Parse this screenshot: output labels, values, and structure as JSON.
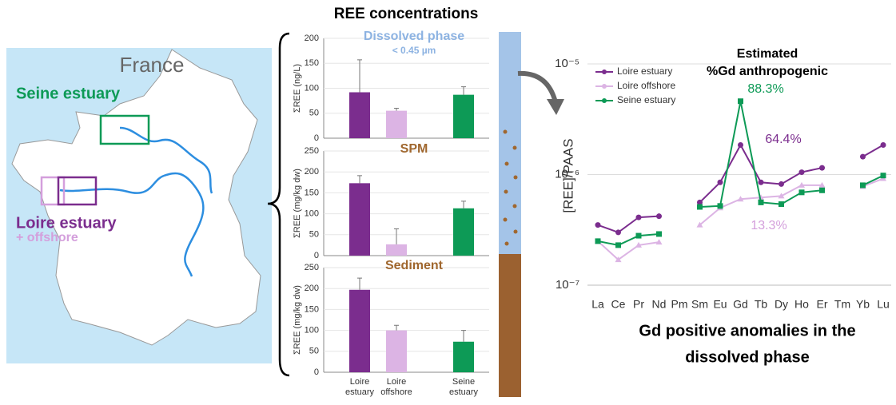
{
  "title": "REE concentrations",
  "map": {
    "title": "France",
    "labels": [
      {
        "text": "Seine estuary",
        "color": "#0d9a56"
      },
      {
        "text": "Loire estuary",
        "color": "#7b2d8e"
      },
      {
        "text": "+ offshore",
        "color": "#d49fdc"
      }
    ]
  },
  "caption": [
    "Gd positive anomalies in the",
    "dissolved phase"
  ],
  "chart_data": [
    {
      "type": "bar",
      "title": "Dissolved phase",
      "subtitle": "< 0.45 µm",
      "title_color": "#8db3e2",
      "ylabel": "ΣREE (ng/L)",
      "values": [
        92,
        55,
        87
      ],
      "errors": [
        65,
        5,
        16
      ],
      "colors": [
        "#7b2d8e",
        "#dcb4e4",
        "#0d9a56"
      ],
      "ylim": [
        0,
        200
      ],
      "yticks": [
        0,
        50,
        100,
        150,
        200
      ],
      "grid": true
    },
    {
      "type": "bar",
      "title": "SPM",
      "title_color": "#a0672e",
      "ylabel": "ΣREE (mg/kg dw)",
      "values": [
        173,
        27,
        113
      ],
      "errors": [
        18,
        37,
        17
      ],
      "colors": [
        "#7b2d8e",
        "#dcb4e4",
        "#0d9a56"
      ],
      "ylim": [
        0,
        250
      ],
      "yticks": [
        0,
        50,
        100,
        150,
        200,
        250
      ],
      "grid": true
    },
    {
      "type": "bar",
      "title": "Sediment",
      "title_color": "#a0672e",
      "ylabel": "ΣREE (mg/kg dw)",
      "categories": [
        "Loire estuary",
        "Loire offshore",
        "Seine estuary"
      ],
      "values": [
        197,
        100,
        73
      ],
      "errors": [
        28,
        12,
        27
      ],
      "colors": [
        "#7b2d8e",
        "#dcb4e4",
        "#0d9a56"
      ],
      "ylim": [
        0,
        250
      ],
      "yticks": [
        0,
        50,
        100,
        150,
        200,
        250
      ],
      "grid": true
    },
    {
      "type": "line",
      "log_y": true,
      "ylabel": "[REE]/PAAS",
      "annotations": [
        {
          "text": "Estimated",
          "color": "#000000"
        },
        {
          "text": "%Gd anthropogenic",
          "color": "#000000"
        },
        {
          "text": "88.3%",
          "color": "#0d9a56"
        },
        {
          "text": "64.4%",
          "color": "#7b2d8e"
        },
        {
          "text": "13.3%",
          "color": "#d49fdc"
        }
      ],
      "categories": [
        "La",
        "Ce",
        "Pr",
        "Nd",
        "Pm",
        "Sm",
        "Eu",
        "Gd",
        "Tb",
        "Dy",
        "Ho",
        "Er",
        "Tm",
        "Yb",
        "Lu"
      ],
      "ylim": [
        1e-07,
        1e-05
      ],
      "yticks": [
        {
          "value": 1e-07,
          "label": "10⁻⁷"
        },
        {
          "value": 1e-06,
          "label": "10⁻⁶"
        },
        {
          "value": 1e-05,
          "label": "10⁻⁵"
        }
      ],
      "grid": true,
      "legend": "upper-left",
      "series": [
        {
          "name": "Loire estuary",
          "color": "#7b2d8e",
          "marker": "circle",
          "values": [
            3.5e-07,
            3e-07,
            4.1e-07,
            4.2e-07,
            null,
            5.6e-07,
            8.5e-07,
            1.85e-06,
            8.5e-07,
            8.2e-07,
            1.05e-06,
            1.15e-06,
            null,
            1.45e-06,
            1.85e-06
          ]
        },
        {
          "name": "Loire offshore",
          "color": "#dcb4e4",
          "marker": "triangle",
          "values": [
            2.5e-07,
            1.7e-07,
            2.3e-07,
            2.45e-07,
            null,
            3.5e-07,
            5e-07,
            6e-07,
            6.2e-07,
            6.4e-07,
            8e-07,
            8e-07,
            null,
            7.8e-07,
            9.2e-07
          ]
        },
        {
          "name": "Seine estuary",
          "color": "#0d9a56",
          "marker": "square",
          "values": [
            2.5e-07,
            2.3e-07,
            2.8e-07,
            2.9e-07,
            null,
            5.1e-07,
            5.2e-07,
            4.6e-06,
            5.6e-07,
            5.4e-07,
            6.9e-07,
            7.2e-07,
            null,
            8e-07,
            9.8e-07
          ]
        }
      ]
    }
  ]
}
